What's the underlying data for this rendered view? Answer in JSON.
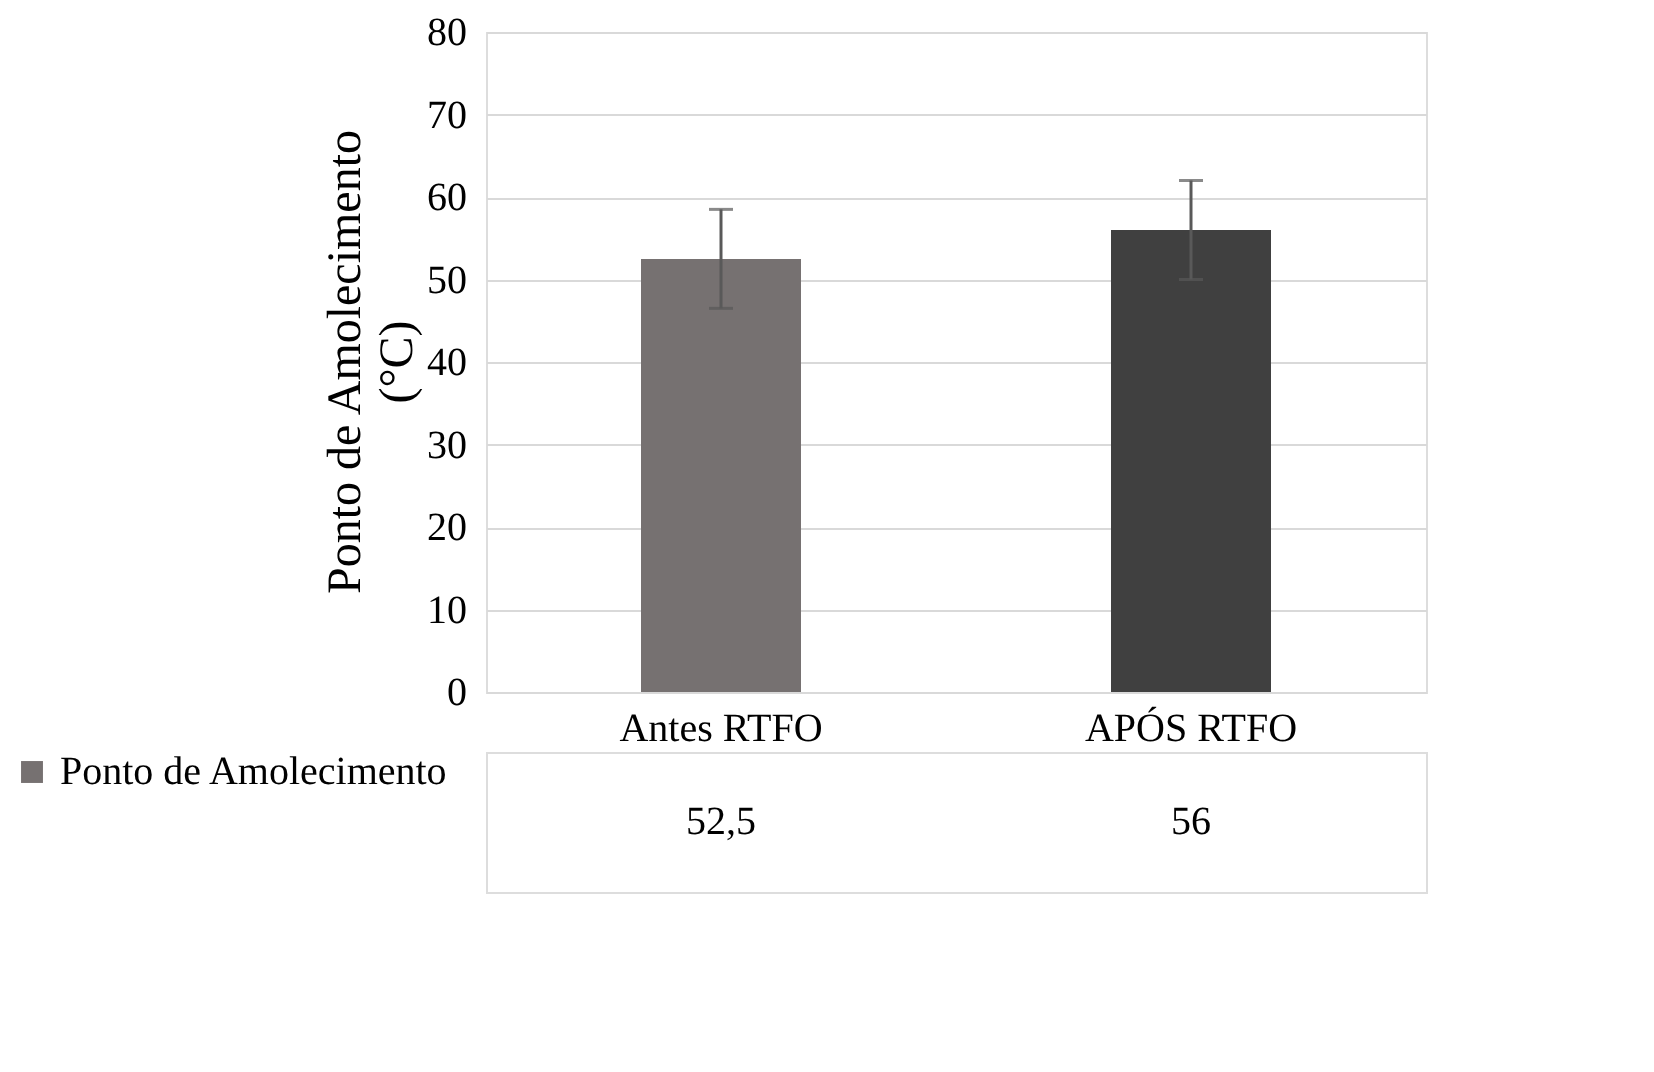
{
  "chart_data": {
    "type": "bar",
    "ylabel": "Ponto de Amolecimento (°C)",
    "categories": [
      "Antes RTFO",
      "APÓS RTFO"
    ],
    "series": [
      {
        "name": "Ponto de Amolecimento",
        "colors": [
          "#767171",
          "#404040"
        ],
        "values": [
          52.5,
          56
        ],
        "errors": [
          6,
          6
        ],
        "value_labels": [
          "52,5",
          "56"
        ]
      }
    ],
    "ylim": [
      0,
      80
    ],
    "yticks": [
      0,
      10,
      20,
      30,
      40,
      50,
      60,
      70,
      80
    ],
    "grid": "y",
    "legend": "bottom left"
  }
}
